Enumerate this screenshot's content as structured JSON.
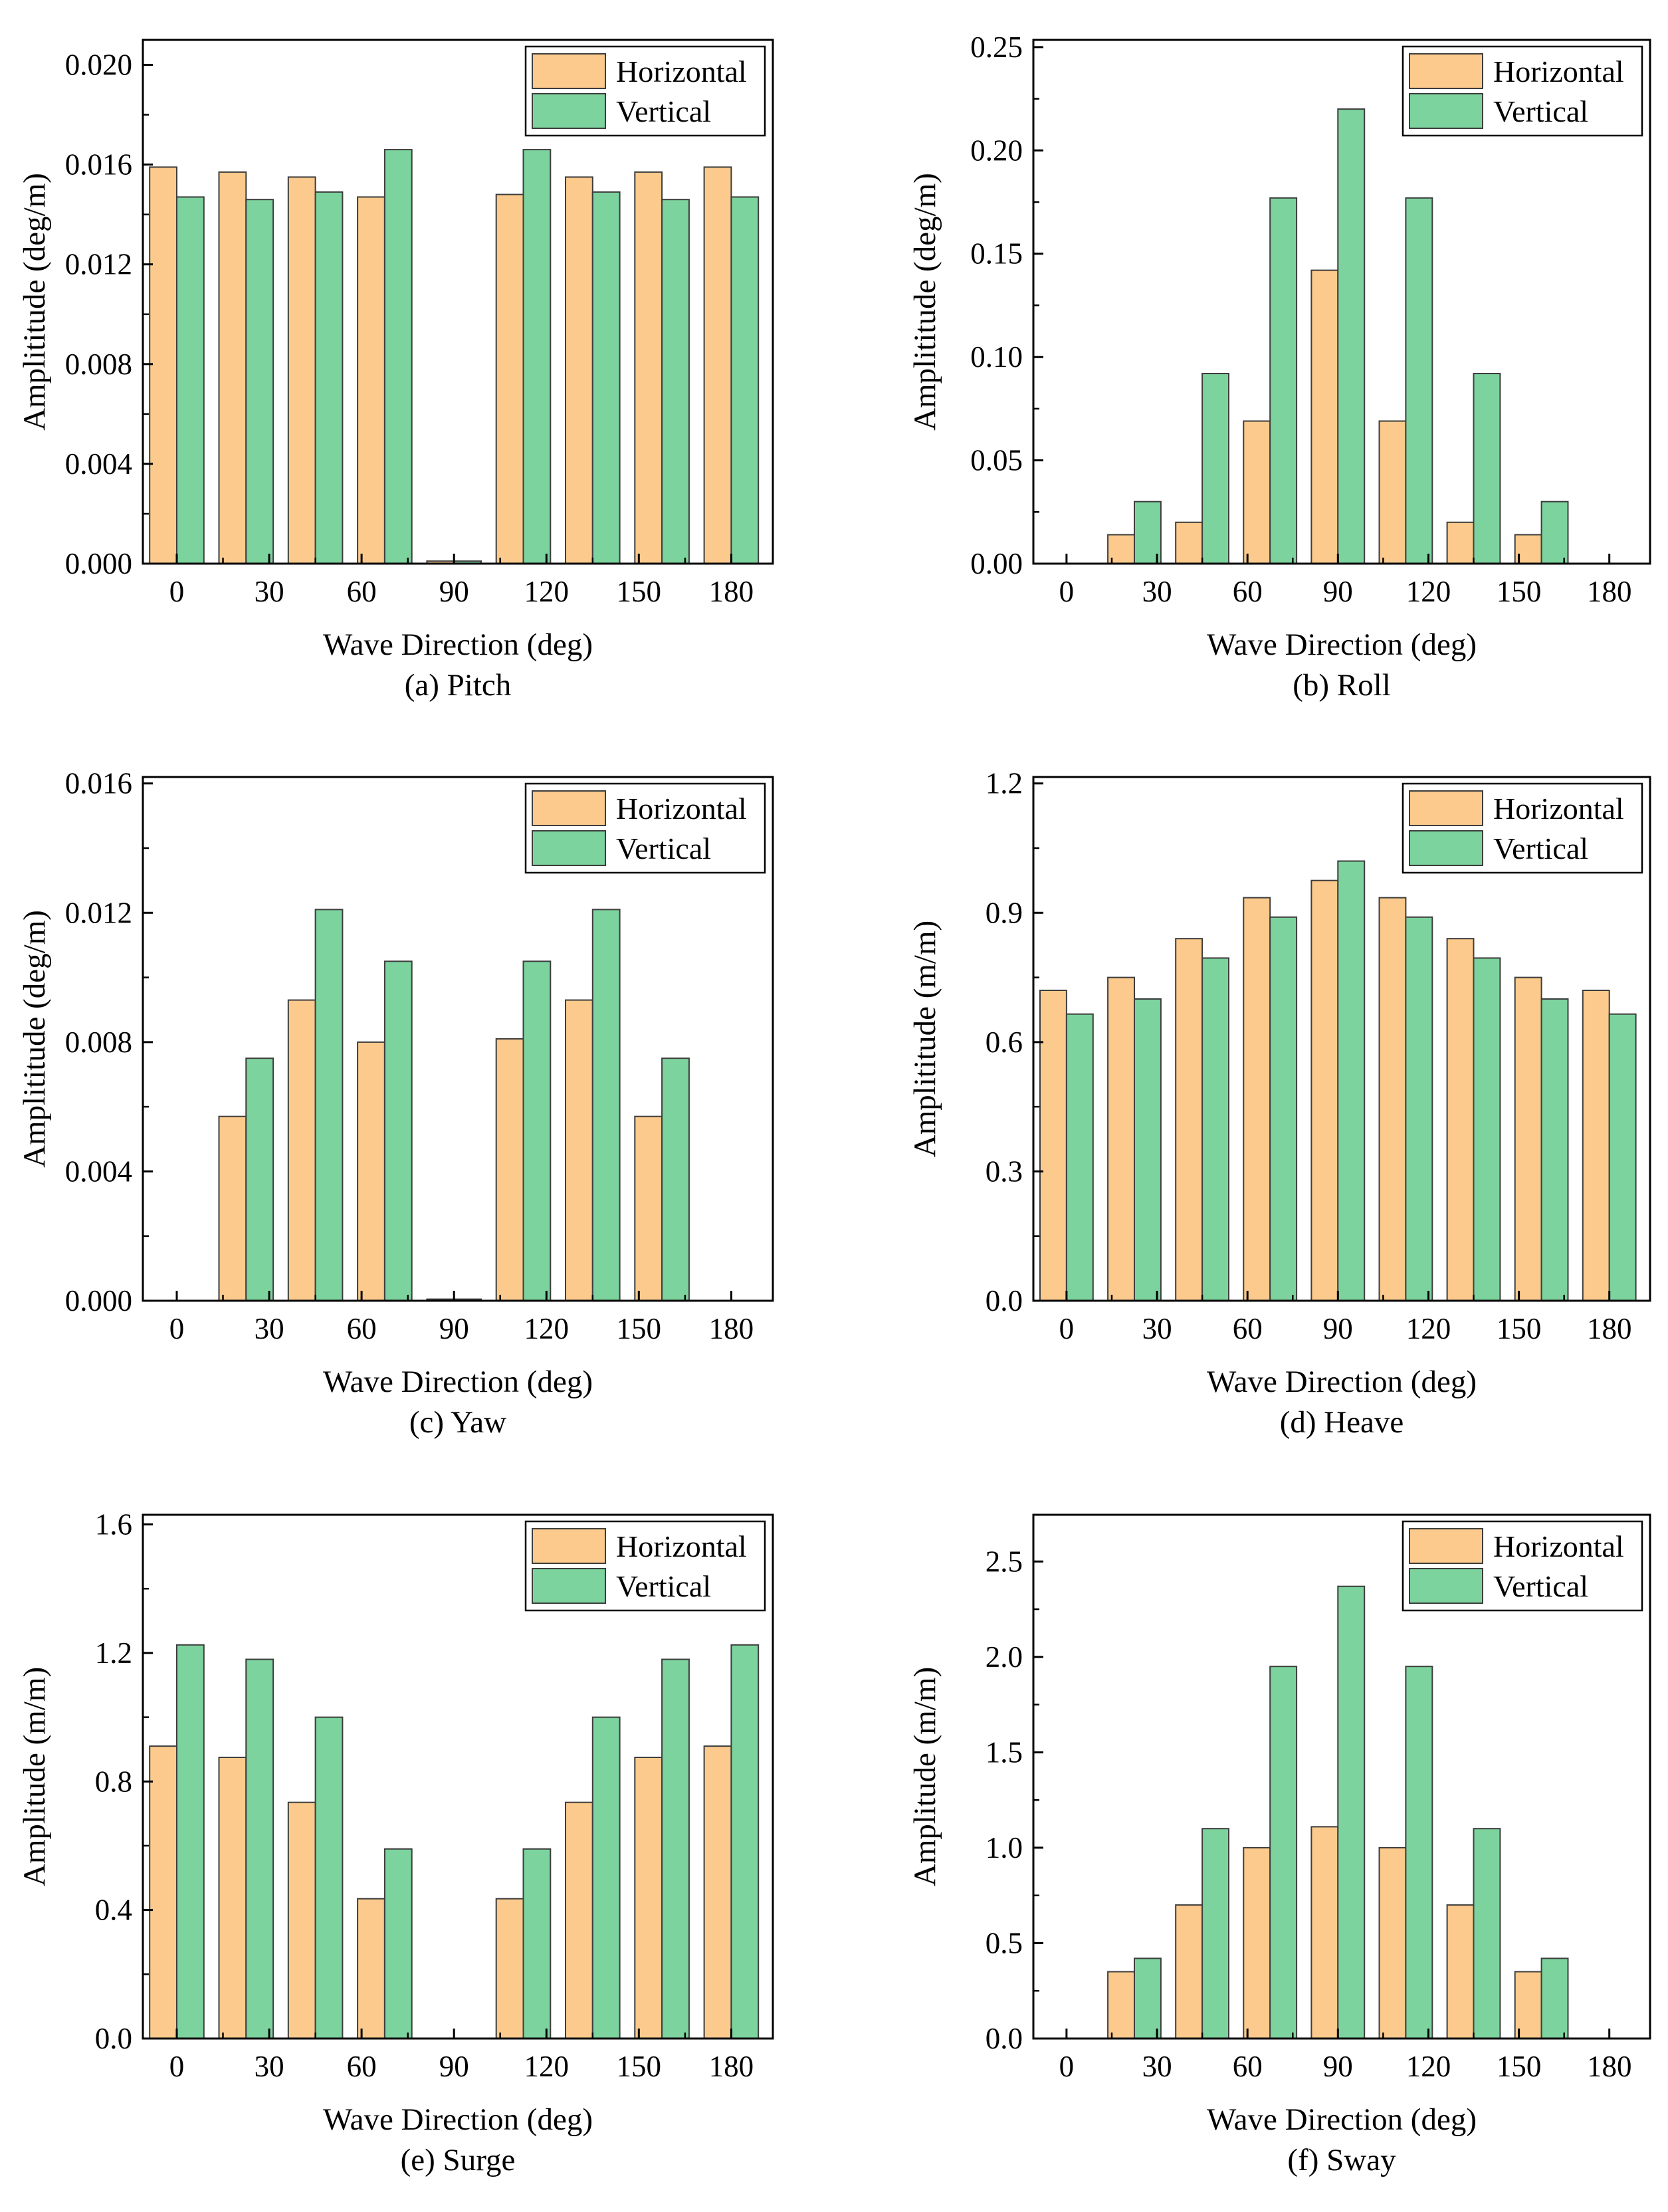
{
  "figure": {
    "type": "multi-panel-bar-figure",
    "panels_layout": "2x3",
    "background": "#ffffff"
  },
  "colors": {
    "horizontal_fill": "#FBCA8C",
    "vertical_fill": "#7DD39E",
    "bar_stroke": "#3d3d3d",
    "frame_stroke": "#000000",
    "text": "#000000",
    "legend_border": "#000000",
    "legend_background": "#ffffff"
  },
  "legend": {
    "items": [
      {
        "label": "Horizontal",
        "series": "horizontal"
      },
      {
        "label": "Vertical",
        "series": "vertical"
      }
    ]
  },
  "shared": {
    "xlabel": "Wave Direction (deg)",
    "x_major_ticks": [
      0,
      30,
      60,
      90,
      120,
      150,
      180
    ],
    "x_minor_ticks": [
      15,
      45,
      75,
      105,
      135,
      165
    ],
    "xlim": [
      -11,
      193.5
    ],
    "bar_width_deg": 8.8,
    "grid": "off",
    "legend_position": "top-right-inside"
  },
  "chart_data": [
    {
      "type": "bar",
      "caption": "(a) Pitch",
      "ylabel": "Amplititude (deg/m)",
      "xlabel": "Wave Direction (deg)",
      "ylim": [
        0,
        0.021
      ],
      "yticks": [
        0.0,
        0.004,
        0.008,
        0.012,
        0.016,
        0.02
      ],
      "ytick_decimals": 3,
      "categories": [
        0,
        22.5,
        45,
        67.5,
        90,
        112.5,
        135,
        157.5,
        180
      ],
      "series": [
        {
          "name": "Horizontal",
          "values": [
            0.0159,
            0.0157,
            0.0155,
            0.0147,
            0.0001,
            0.0148,
            0.0155,
            0.0157,
            0.0159
          ]
        },
        {
          "name": "Vertical",
          "values": [
            0.0147,
            0.0146,
            0.0149,
            0.0166,
            0.0001,
            0.0166,
            0.0149,
            0.0146,
            0.0147
          ]
        }
      ]
    },
    {
      "type": "bar",
      "caption": "(b) Roll",
      "ylabel": "Amplititude (deg/m)",
      "xlabel": "Wave Direction (deg)",
      "ylim": [
        0,
        0.2535
      ],
      "yticks": [
        0.0,
        0.05,
        0.1,
        0.15,
        0.2,
        0.25
      ],
      "ytick_decimals": 2,
      "categories": [
        0,
        22.5,
        45,
        67.5,
        90,
        112.5,
        135,
        157.5,
        180
      ],
      "series": [
        {
          "name": "Horizontal",
          "values": [
            0,
            0.014,
            0.02,
            0.069,
            0.142,
            0.069,
            0.02,
            0.014,
            0
          ]
        },
        {
          "name": "Vertical",
          "values": [
            0,
            0.03,
            0.092,
            0.177,
            0.22,
            0.177,
            0.092,
            0.03,
            0
          ]
        }
      ]
    },
    {
      "type": "bar",
      "caption": "(c) Yaw",
      "ylabel": "Amplititude (deg/m)",
      "xlabel": "Wave Direction (deg)",
      "ylim": [
        0,
        0.0162
      ],
      "yticks": [
        0.0,
        0.004,
        0.008,
        0.012,
        0.016
      ],
      "ytick_decimals": 3,
      "categories": [
        0,
        22.5,
        45,
        67.5,
        90,
        112.5,
        135,
        157.5,
        180
      ],
      "series": [
        {
          "name": "Horizontal",
          "values": [
            0,
            0.0057,
            0.0093,
            0.008,
            5e-05,
            0.0081,
            0.0093,
            0.0057,
            0
          ]
        },
        {
          "name": "Vertical",
          "values": [
            0,
            0.0075,
            0.0121,
            0.0105,
            5e-05,
            0.0105,
            0.0121,
            0.0075,
            0
          ]
        }
      ]
    },
    {
      "type": "bar",
      "caption": "(d) Heave",
      "ylabel": "Amplititude (m/m)",
      "xlabel": "Wave Direction (deg)",
      "ylim": [
        0,
        1.215
      ],
      "yticks": [
        0.0,
        0.3,
        0.6,
        0.9,
        1.2
      ],
      "ytick_decimals": 1,
      "categories": [
        0,
        22.5,
        45,
        67.5,
        90,
        112.5,
        135,
        157.5,
        180
      ],
      "series": [
        {
          "name": "Horizontal",
          "values": [
            0.72,
            0.75,
            0.84,
            0.935,
            0.975,
            0.935,
            0.84,
            0.75,
            0.72
          ]
        },
        {
          "name": "Vertical",
          "values": [
            0.665,
            0.7,
            0.795,
            0.89,
            1.02,
            0.89,
            0.795,
            0.7,
            0.665
          ]
        }
      ]
    },
    {
      "type": "bar",
      "caption": "(e) Surge",
      "ylabel": "Amplitude (m/m)",
      "xlabel": "Wave Direction (deg)",
      "ylim": [
        0,
        1.63
      ],
      "yticks": [
        0.0,
        0.4,
        0.8,
        1.2,
        1.6
      ],
      "ytick_decimals": 1,
      "categories": [
        0,
        22.5,
        45,
        67.5,
        90,
        112.5,
        135,
        157.5,
        180
      ],
      "series": [
        {
          "name": "Horizontal",
          "values": [
            0.91,
            0.875,
            0.735,
            0.435,
            0,
            0.435,
            0.735,
            0.875,
            0.91
          ]
        },
        {
          "name": "Vertical",
          "values": [
            1.225,
            1.18,
            1.0,
            0.59,
            0,
            0.59,
            1.0,
            1.18,
            1.225
          ]
        }
      ]
    },
    {
      "type": "bar",
      "caption": "(f) Sway",
      "ylabel": "Amplitude (m/m)",
      "xlabel": "Wave Direction (deg)",
      "ylim": [
        0,
        2.745
      ],
      "yticks": [
        0.0,
        0.5,
        1.0,
        1.5,
        2.0,
        2.5
      ],
      "ytick_decimals": 1,
      "categories": [
        0,
        22.5,
        45,
        67.5,
        90,
        112.5,
        135,
        157.5,
        180
      ],
      "series": [
        {
          "name": "Horizontal",
          "values": [
            0,
            0.35,
            0.7,
            1.0,
            1.11,
            1.0,
            0.7,
            0.35,
            0
          ]
        },
        {
          "name": "Vertical",
          "values": [
            0,
            0.42,
            1.1,
            1.95,
            2.37,
            1.95,
            1.1,
            0.42,
            0
          ]
        }
      ]
    }
  ]
}
